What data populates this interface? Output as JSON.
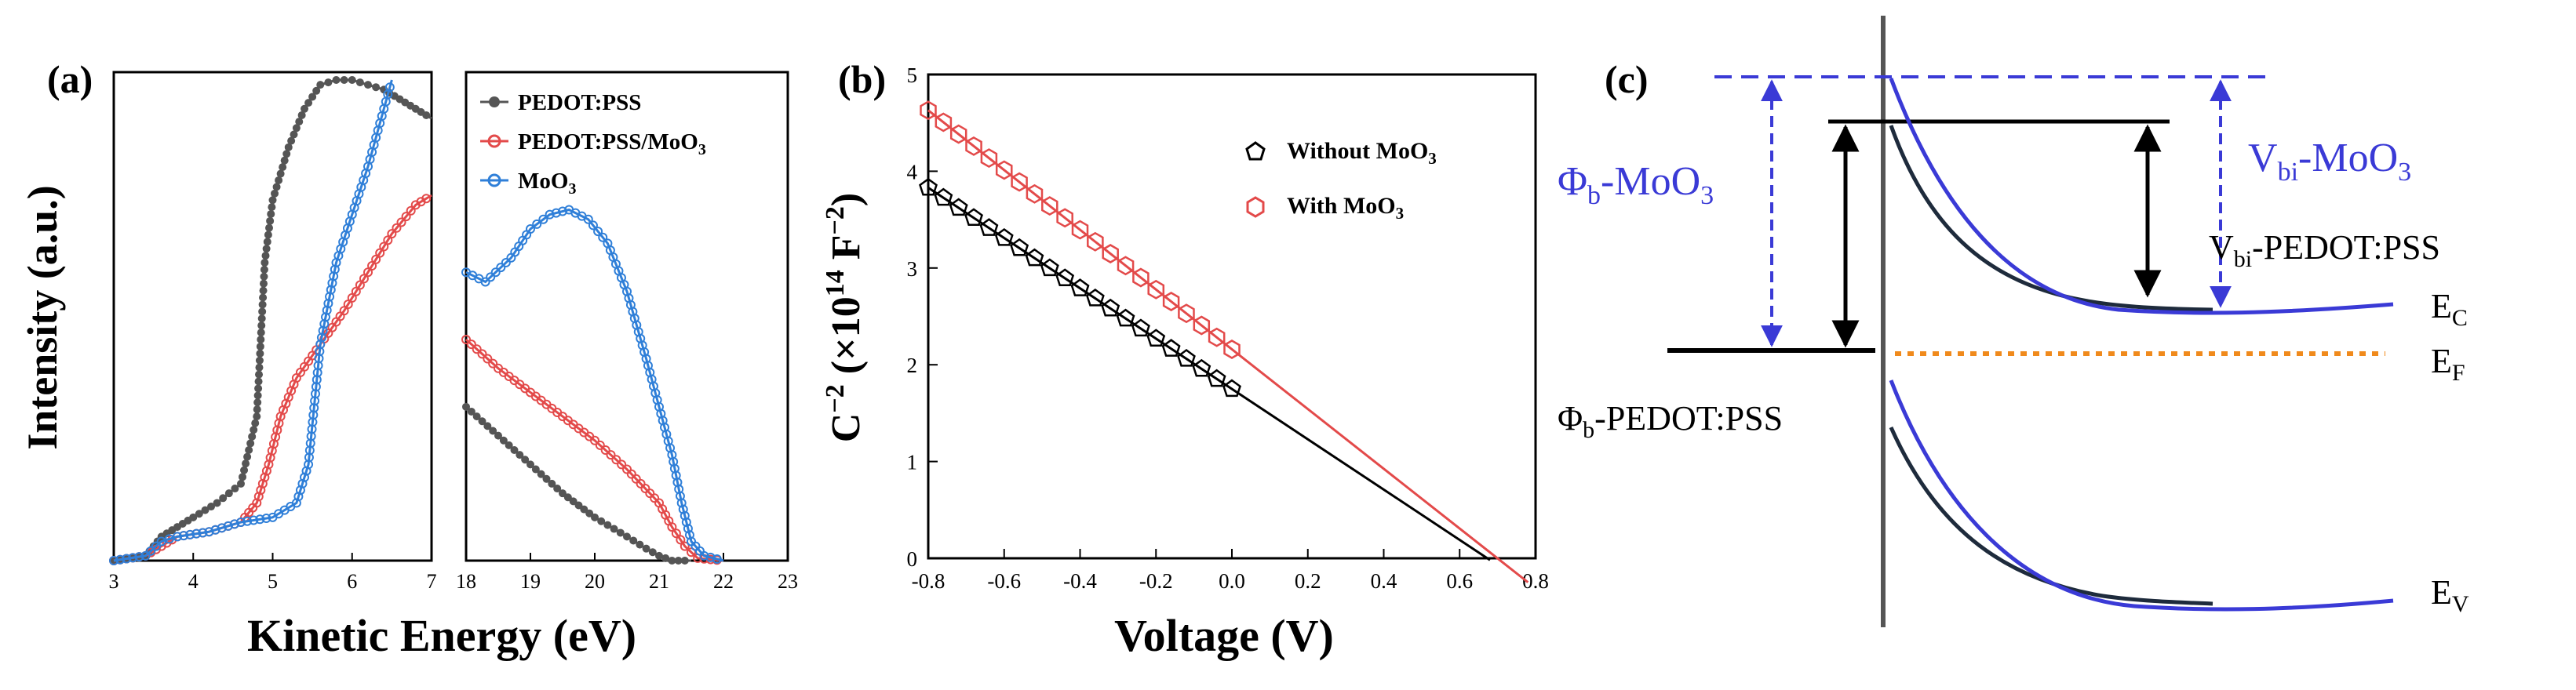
{
  "chart_data": [
    {
      "panel": "a",
      "panel_label": "(a)",
      "type": "line",
      "ylabel": "Intensity (a.u.)",
      "xlabel": "Kinetic Energy (eV)",
      "legend_position": "top-right",
      "left_plot": {
        "xlim": [
          3,
          7
        ],
        "ylim": [
          0,
          1
        ],
        "xticks": [
          "3",
          "4",
          "5",
          "6",
          "7"
        ],
        "series": [
          {
            "name": "PEDOT:PSS",
            "color": "#555555",
            "x": [
              3.0,
              3.4,
              3.6,
              3.8,
              4.0,
              4.3,
              4.6,
              4.8,
              4.9,
              5.0,
              5.2,
              5.4,
              5.6,
              5.8,
              6.0,
              6.2,
              6.4,
              6.6,
              6.8,
              7.0
            ],
            "y": [
              0.0,
              0.01,
              0.05,
              0.07,
              0.09,
              0.12,
              0.16,
              0.3,
              0.62,
              0.75,
              0.86,
              0.94,
              0.99,
              1.0,
              1.0,
              0.99,
              0.98,
              0.96,
              0.94,
              0.92
            ]
          },
          {
            "name": "PEDOT:PSS/MoO3",
            "color": "#e34a4a",
            "x": [
              3.0,
              3.4,
              3.6,
              3.8,
              4.2,
              4.6,
              4.8,
              4.95,
              5.1,
              5.3,
              5.6,
              5.9,
              6.2,
              6.5,
              6.8,
              7.0
            ],
            "y": [
              0.0,
              0.01,
              0.03,
              0.05,
              0.06,
              0.08,
              0.12,
              0.2,
              0.3,
              0.38,
              0.45,
              0.52,
              0.6,
              0.68,
              0.74,
              0.76
            ]
          },
          {
            "name": "MoO3",
            "color": "#2f7fd8",
            "x": [
              3.0,
              3.4,
              3.6,
              3.8,
              4.2,
              4.6,
              5.0,
              5.3,
              5.45,
              5.6,
              5.8,
              6.0,
              6.2,
              6.4,
              6.5
            ],
            "y": [
              0.0,
              0.01,
              0.04,
              0.05,
              0.06,
              0.08,
              0.09,
              0.12,
              0.2,
              0.45,
              0.62,
              0.72,
              0.82,
              0.94,
              1.0
            ]
          }
        ]
      },
      "right_plot": {
        "xlim": [
          18,
          23
        ],
        "ylim": [
          0,
          1
        ],
        "xticks": [
          "18",
          "19",
          "20",
          "21",
          "22",
          "23"
        ],
        "series": [
          {
            "name": "PEDOT:PSS",
            "color": "#555555",
            "x": [
              18.0,
              18.5,
              19.0,
              19.5,
              20.0,
              20.5,
              20.8,
              21.0,
              21.2,
              21.5
            ],
            "y": [
              0.32,
              0.26,
              0.2,
              0.14,
              0.09,
              0.05,
              0.025,
              0.01,
              0.0,
              0.0
            ]
          },
          {
            "name": "PEDOT:PSS/MoO3",
            "color": "#e34a4a",
            "x": [
              18.0,
              18.5,
              19.0,
              19.5,
              20.0,
              20.5,
              21.0,
              21.2,
              21.4,
              21.6,
              22.0
            ],
            "y": [
              0.46,
              0.4,
              0.35,
              0.3,
              0.25,
              0.19,
              0.12,
              0.07,
              0.03,
              0.005,
              0.0
            ]
          },
          {
            "name": "MoO3",
            "color": "#2f7fd8",
            "x": [
              18.0,
              18.3,
              18.7,
              19.0,
              19.3,
              19.6,
              19.9,
              20.2,
              20.5,
              20.8,
              21.0,
              21.2,
              21.35,
              21.5,
              21.7,
              22.0
            ],
            "y": [
              0.6,
              0.58,
              0.63,
              0.69,
              0.72,
              0.73,
              0.71,
              0.66,
              0.56,
              0.42,
              0.32,
              0.22,
              0.12,
              0.04,
              0.01,
              0.0
            ]
          }
        ]
      }
    },
    {
      "panel": "b",
      "panel_label": "(b)",
      "type": "scatter",
      "xlabel": "Voltage (V)",
      "ylabel": "C⁻² (×10¹⁴ F⁻²)",
      "xlim": [
        -0.8,
        0.8
      ],
      "ylim": [
        0,
        5
      ],
      "xticks": [
        "-0.8",
        "-0.6",
        "-0.4",
        "-0.2",
        "0.0",
        "0.2",
        "0.4",
        "0.6",
        "0.8"
      ],
      "yticks": [
        "0",
        "1",
        "2",
        "3",
        "4",
        "5"
      ],
      "legend_position": "top-right",
      "series": [
        {
          "name": "Without MoO3",
          "marker": "pentagon",
          "color": "#000000",
          "x_start": -0.8,
          "y_start": 3.83,
          "x_end": 0.0,
          "y_end": 1.75,
          "fit_x_end": 0.68,
          "point_count": 21
        },
        {
          "name": "With MoO3",
          "marker": "hexagon",
          "color": "#e34a4a",
          "x_start": -0.8,
          "y_start": 4.63,
          "x_end": 0.0,
          "y_end": 2.16,
          "fit_x_end": 0.78,
          "point_count": 21
        }
      ]
    }
  ],
  "diagram_c": {
    "panel_label": "(c)",
    "labels": {
      "phi_b_moo3": "Φb-MoO3",
      "vbi_moo3": "Vbi-MoO3",
      "vbi_pedot": "Vbi-PEDOT:PSS",
      "phi_b_pedot": "Φb-PEDOT:PSS",
      "ec": "EC",
      "ef": "EF",
      "ev": "EV"
    },
    "colors": {
      "blue": "#3a3ad6",
      "dark": "#1e2b3c",
      "orange": "#f08a1c",
      "black": "#000000"
    }
  }
}
